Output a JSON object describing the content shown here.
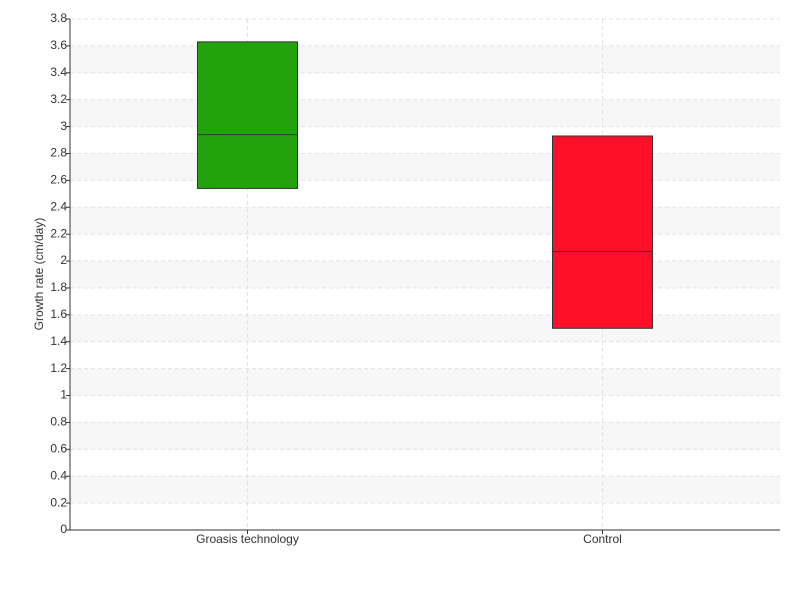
{
  "chart_data": {
    "type": "box",
    "y_label": "Growth rate (cm/day)",
    "boxes": [
      {
        "name": "Groasis technology",
        "color": "#22a30e",
        "q1": 2.54,
        "median": 2.94,
        "q3": 3.63
      },
      {
        "name": "Control",
        "color": "#ff0f28",
        "q1": 1.5,
        "median": 2.07,
        "q3": 2.93
      }
    ],
    "ylim": [
      0,
      3.8
    ],
    "yticks": [
      0,
      0.2,
      0.4,
      0.6,
      0.8,
      1,
      1.2,
      1.4,
      1.6,
      1.8,
      2,
      2.2,
      2.4,
      2.6,
      2.8,
      3,
      3.2,
      3.4,
      3.6,
      3.8
    ],
    "grid": true
  }
}
